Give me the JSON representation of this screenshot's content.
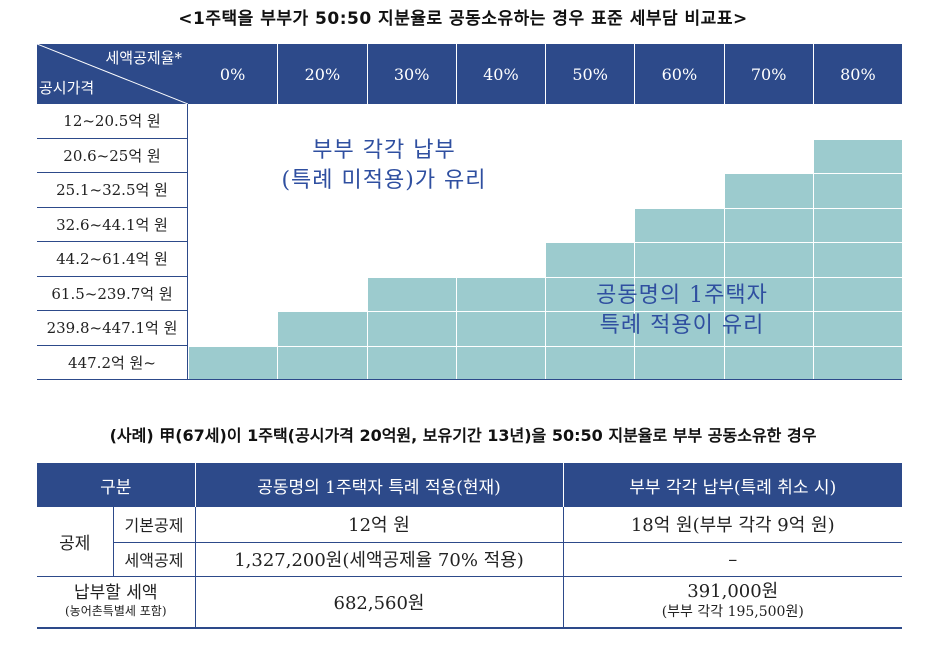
{
  "title": "<1주택을 부부가 50:50 지분율로 공동소유하는 경우 표준 세부담 비교표>",
  "chart": {
    "corner_top": "세액공제율*",
    "corner_bottom": "공시가격",
    "columns": [
      "0%",
      "20%",
      "30%",
      "40%",
      "50%",
      "60%",
      "70%",
      "80%"
    ],
    "rows": [
      "12~20.5억 원",
      "20.6~25억 원",
      "25.1~32.5억 원",
      "32.6~44.1억 원",
      "44.2~61.4억 원",
      "61.5~239.7억 원",
      "239.8~447.1억 원",
      "447.2억 원~"
    ],
    "first_shaded_column_index_by_row": [
      null,
      7,
      6,
      5,
      4,
      2,
      1,
      0
    ],
    "upper_region_label": [
      "부부 각각 납부",
      "(특례 미적용)가 유리"
    ],
    "lower_region_label": [
      "공동명의 1주택자",
      "특례 적용이 유리"
    ],
    "colors": {
      "header": "#2d4a8a",
      "shaded": "#9ccbce",
      "label_text": "#2f4fa0"
    }
  },
  "example": "(사례) 甲(67세)이 1주택(공시가격 20억원, 보유기간 13년)을 50:50 지분율로 부부 공동소유한 경우",
  "comparison": {
    "headers": [
      "구분",
      "공동명의 1주택자 특례 적용(현재)",
      "부부 각각 납부(특례 취소 시)"
    ],
    "group_label": "공제",
    "rows": [
      {
        "label": "기본공제",
        "current": "12억 원",
        "separate": "18억 원(부부 각각 9억 원)"
      },
      {
        "label": "세액공제",
        "current": "1,327,200원(세액공제율 70% 적용)",
        "separate": "–"
      }
    ],
    "tax_label": "납부할 세액",
    "tax_sublabel": "(농어촌특별세 포함)",
    "tax_current": "682,560원",
    "tax_separate": "391,000원",
    "tax_separate_sub": "(부부 각각 195,500원)"
  }
}
